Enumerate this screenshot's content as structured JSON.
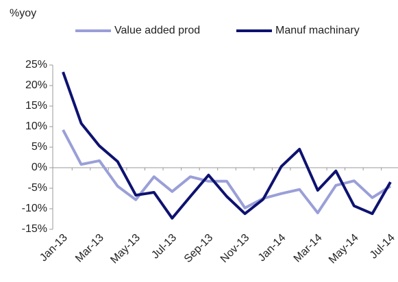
{
  "chart_data": {
    "type": "line",
    "y_label": "%yoy",
    "categories": [
      "Jan-13",
      null,
      "Mar-13",
      null,
      "May-13",
      null,
      "Jul-13",
      null,
      "Sep-13",
      null,
      "Nov-13",
      null,
      "Jan-14",
      null,
      "Mar-14",
      null,
      "May-14",
      null,
      "Jul-14"
    ],
    "series": [
      {
        "name": "Value added prod",
        "color": "#9a9fd8",
        "values": [
          9.2,
          0.8,
          1.7,
          -4.5,
          -7.8,
          -2.2,
          -5.8,
          -2.2,
          -3.3,
          -3.3,
          -9.8,
          -7.5,
          -6.3,
          -5.3,
          -11,
          -4.3,
          -3.2,
          -7.3,
          -4.5
        ]
      },
      {
        "name": "Manuf machinary",
        "color": "#0d1270",
        "values": [
          23.3,
          10.8,
          5.3,
          1.5,
          -6.7,
          -6,
          -12.3,
          -7,
          -1.8,
          -7,
          -11.2,
          -7.7,
          0.3,
          4.5,
          -5.5,
          -0.8,
          -9.3,
          -11.2,
          -3.5
        ]
      }
    ],
    "ylim": [
      -15,
      25
    ],
    "yticks": [
      {
        "value": -15,
        "label": "-15%"
      },
      {
        "value": -10,
        "label": "-10%"
      },
      {
        "value": -5,
        "label": "-5%"
      },
      {
        "value": 0,
        "label": "0%"
      },
      {
        "value": 5,
        "label": "5%"
      },
      {
        "value": 10,
        "label": "10%"
      },
      {
        "value": 15,
        "label": "15%"
      },
      {
        "value": 20,
        "label": "20%"
      },
      {
        "value": 25,
        "label": "25%"
      }
    ],
    "legend": "top"
  }
}
